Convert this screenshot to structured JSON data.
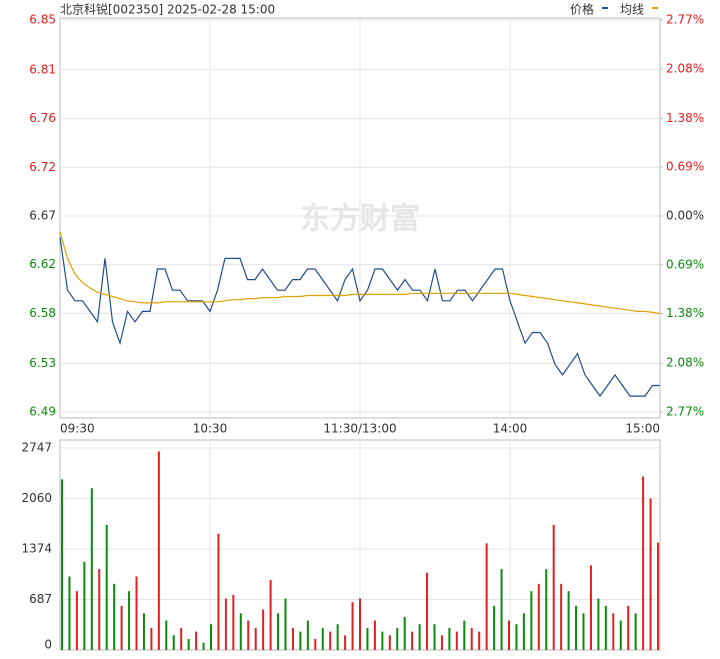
{
  "chart_data": [
    {
      "type": "line",
      "title": "北京科锐[002350] 2025-02-28 15:00",
      "watermark": "东方财富",
      "categories": [
        "09:30",
        null,
        null,
        null,
        null,
        null,
        null,
        null,
        null,
        null,
        null,
        null,
        null,
        null,
        null,
        null,
        null,
        null,
        null,
        null,
        "10:30",
        null,
        null,
        null,
        null,
        null,
        null,
        null,
        null,
        null,
        null,
        null,
        null,
        null,
        null,
        null,
        null,
        null,
        null,
        null,
        "11:30/13:00",
        null,
        null,
        null,
        null,
        null,
        null,
        null,
        null,
        null,
        null,
        null,
        null,
        null,
        null,
        null,
        null,
        null,
        null,
        null,
        "14:00",
        null,
        null,
        null,
        null,
        null,
        null,
        null,
        null,
        null,
        null,
        null,
        null,
        null,
        null,
        null,
        null,
        null,
        null,
        null,
        "15:00"
      ],
      "series": [
        {
          "name": "价格",
          "color": "#1f4e8c",
          "values": [
            6.65,
            6.6,
            6.59,
            6.59,
            6.58,
            6.57,
            6.63,
            6.57,
            6.55,
            6.58,
            6.57,
            6.58,
            6.58,
            6.62,
            6.62,
            6.6,
            6.6,
            6.59,
            6.59,
            6.59,
            6.58,
            6.6,
            6.63,
            6.63,
            6.63,
            6.61,
            6.61,
            6.62,
            6.61,
            6.6,
            6.6,
            6.61,
            6.61,
            6.62,
            6.62,
            6.61,
            6.6,
            6.59,
            6.61,
            6.62,
            6.59,
            6.6,
            6.62,
            6.62,
            6.61,
            6.6,
            6.61,
            6.6,
            6.6,
            6.59,
            6.62,
            6.59,
            6.59,
            6.6,
            6.6,
            6.59,
            6.6,
            6.61,
            6.62,
            6.62,
            6.59,
            6.57,
            6.55,
            6.56,
            6.56,
            6.55,
            6.53,
            6.52,
            6.53,
            6.54,
            6.52,
            6.51,
            6.5,
            6.51,
            6.52,
            6.51,
            6.5,
            6.5,
            6.5,
            6.51,
            6.51
          ]
        },
        {
          "name": "均线",
          "color": "#e0a100",
          "values": [
            6.655,
            6.63,
            6.615,
            6.607,
            6.602,
            6.598,
            6.596,
            6.594,
            6.592,
            6.59,
            6.589,
            6.588,
            6.588,
            6.588,
            6.589,
            6.589,
            6.589,
            6.589,
            6.589,
            6.589,
            6.589,
            6.589,
            6.59,
            6.591,
            6.591,
            6.592,
            6.592,
            6.593,
            6.593,
            6.593,
            6.594,
            6.594,
            6.594,
            6.595,
            6.595,
            6.595,
            6.595,
            6.595,
            6.595,
            6.596,
            6.596,
            6.596,
            6.596,
            6.596,
            6.596,
            6.596,
            6.596,
            6.597,
            6.597,
            6.597,
            6.597,
            6.597,
            6.597,
            6.597,
            6.597,
            6.597,
            6.597,
            6.597,
            6.597,
            6.597,
            6.597,
            6.596,
            6.595,
            6.594,
            6.593,
            6.592,
            6.591,
            6.59,
            6.589,
            6.588,
            6.587,
            6.586,
            6.585,
            6.584,
            6.583,
            6.582,
            6.581,
            6.58,
            6.58,
            6.579,
            6.578
          ]
        }
      ],
      "ylim": [
        6.485,
        6.855
      ],
      "yticks": [
        {
          "value": 6.485,
          "label": "6.49"
        },
        {
          "value": 6.531,
          "label": "6.53"
        },
        {
          "value": 6.578,
          "label": "6.58"
        },
        {
          "value": 6.624,
          "label": "6.62"
        },
        {
          "value": 6.67,
          "label": "6.67"
        },
        {
          "value": 6.716,
          "label": "6.72"
        },
        {
          "value": 6.762,
          "label": "6.76"
        },
        {
          "value": 6.808,
          "label": "6.81"
        },
        {
          "value": 6.855,
          "label": "6.85"
        }
      ],
      "y2lim": [
        -2.77,
        2.77
      ],
      "y2ticks": [
        {
          "value": -2.77,
          "label": "2.77%"
        },
        {
          "value": -2.08,
          "label": "2.08%"
        },
        {
          "value": -1.38,
          "label": "1.38%"
        },
        {
          "value": -0.69,
          "label": "0.69%"
        },
        {
          "value": 0,
          "label": "0.00%"
        },
        {
          "value": 0.69,
          "label": "0.69%"
        },
        {
          "value": 1.38,
          "label": "1.38%"
        },
        {
          "value": 2.08,
          "label": "2.08%"
        },
        {
          "value": 2.77,
          "label": "2.77%"
        }
      ],
      "grid": true
    },
    {
      "type": "bar",
      "values": [
        2320,
        1000,
        800,
        1200,
        2200,
        1100,
        1700,
        900,
        600,
        800,
        1000,
        500,
        300,
        2700,
        400,
        200,
        300,
        150,
        250,
        100,
        350,
        1580,
        700,
        750,
        500,
        400,
        300,
        550,
        950,
        500,
        700,
        300,
        250,
        400,
        150,
        300,
        250,
        350,
        200,
        650,
        700,
        300,
        400,
        250,
        200,
        300,
        450,
        250,
        350,
        1050,
        350,
        200,
        300,
        250,
        400,
        300,
        250,
        1450,
        600,
        1100,
        400,
        350,
        500,
        800,
        900,
        1100,
        1700,
        900,
        800,
        600,
        500,
        1150,
        700,
        600,
        500,
        400,
        600,
        500,
        2360,
        2060,
        1460
      ],
      "colors": [
        "#0b8a0b",
        "#0b8a0b",
        "#e02020",
        "#0b8a0b",
        "#0b8a0b",
        "#e02020",
        "#0b8a0b",
        "#0b8a0b",
        "#e02020",
        "#0b8a0b",
        "#e02020",
        "#0b8a0b",
        "#e02020",
        "#e02020",
        "#0b8a0b",
        "#0b8a0b",
        "#e02020",
        "#0b8a0b",
        "#e02020",
        "#0b8a0b",
        "#0b8a0b",
        "#e02020",
        "#e02020",
        "#e02020",
        "#0b8a0b",
        "#e02020",
        "#e02020",
        "#e02020",
        "#e02020",
        "#0b8a0b",
        "#0b8a0b",
        "#e02020",
        "#0b8a0b",
        "#0b8a0b",
        "#e02020",
        "#0b8a0b",
        "#e02020",
        "#0b8a0b",
        "#e02020",
        "#e02020",
        "#e02020",
        "#0b8a0b",
        "#e02020",
        "#0b8a0b",
        "#e02020",
        "#0b8a0b",
        "#0b8a0b",
        "#e02020",
        "#0b8a0b",
        "#e02020",
        "#0b8a0b",
        "#e02020",
        "#0b8a0b",
        "#e02020",
        "#0b8a0b",
        "#e02020",
        "#e02020",
        "#e02020",
        "#0b8a0b",
        "#0b8a0b",
        "#e02020",
        "#0b8a0b",
        "#0b8a0b",
        "#0b8a0b",
        "#e02020",
        "#0b8a0b",
        "#e02020",
        "#e02020",
        "#0b8a0b",
        "#0b8a0b",
        "#0b8a0b",
        "#e02020",
        "#0b8a0b",
        "#0b8a0b",
        "#e02020",
        "#0b8a0b",
        "#e02020",
        "#0b8a0b",
        "#e02020",
        "#e02020",
        "#e02020"
      ],
      "ylim": [
        0,
        2747
      ],
      "yticks": [
        0,
        687,
        1374,
        2060,
        2747
      ],
      "grid": true
    }
  ]
}
